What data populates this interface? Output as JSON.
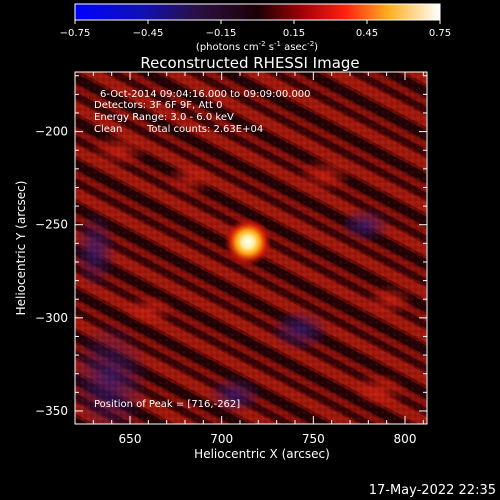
{
  "colorbar": {
    "ticks": [
      "-0.75",
      "-0.45",
      "-0.15",
      "0.15",
      "0.45",
      "0.75"
    ],
    "unit_prefix": "(photons cm",
    "unit_exp1": "-2",
    "unit_mid": " s",
    "unit_exp2": "-1",
    "unit_mid2": " asec",
    "unit_exp3": "-2",
    "unit_suffix": ")",
    "range": [
      -0.75,
      0.75
    ]
  },
  "image": {
    "title": "Reconstructed RHESSI Image",
    "info_line1": "6-Oct-2014 09:04:16.000 to 09:09:00.000",
    "info_line2": "Detectors: 3F 6F 9F, Att 0",
    "info_line3": "Energy Range: 3.0 - 6.0 keV",
    "info_line4_a": "Clean",
    "info_line4_b": "Total counts: 2.63E+04",
    "peak_label": "Position of Peak = [716,-262]",
    "xlabel": "Heliocentric X (arcsec)",
    "ylabel": "Heliocentric Y (arcsec)",
    "xlim": [
      620,
      812
    ],
    "ylim": [
      -357,
      -168
    ],
    "xticks": [
      650,
      700,
      750,
      800
    ],
    "yticks": [
      -200,
      -250,
      -300,
      -350
    ],
    "xtick_labels": [
      "650",
      "700",
      "750",
      "800"
    ],
    "ytick_labels": [
      "-200",
      "-250",
      "-300",
      "-350"
    ],
    "peak": [
      716,
      -262
    ]
  },
  "footer": {
    "timestamp": "17-May-2022 22:35"
  }
}
